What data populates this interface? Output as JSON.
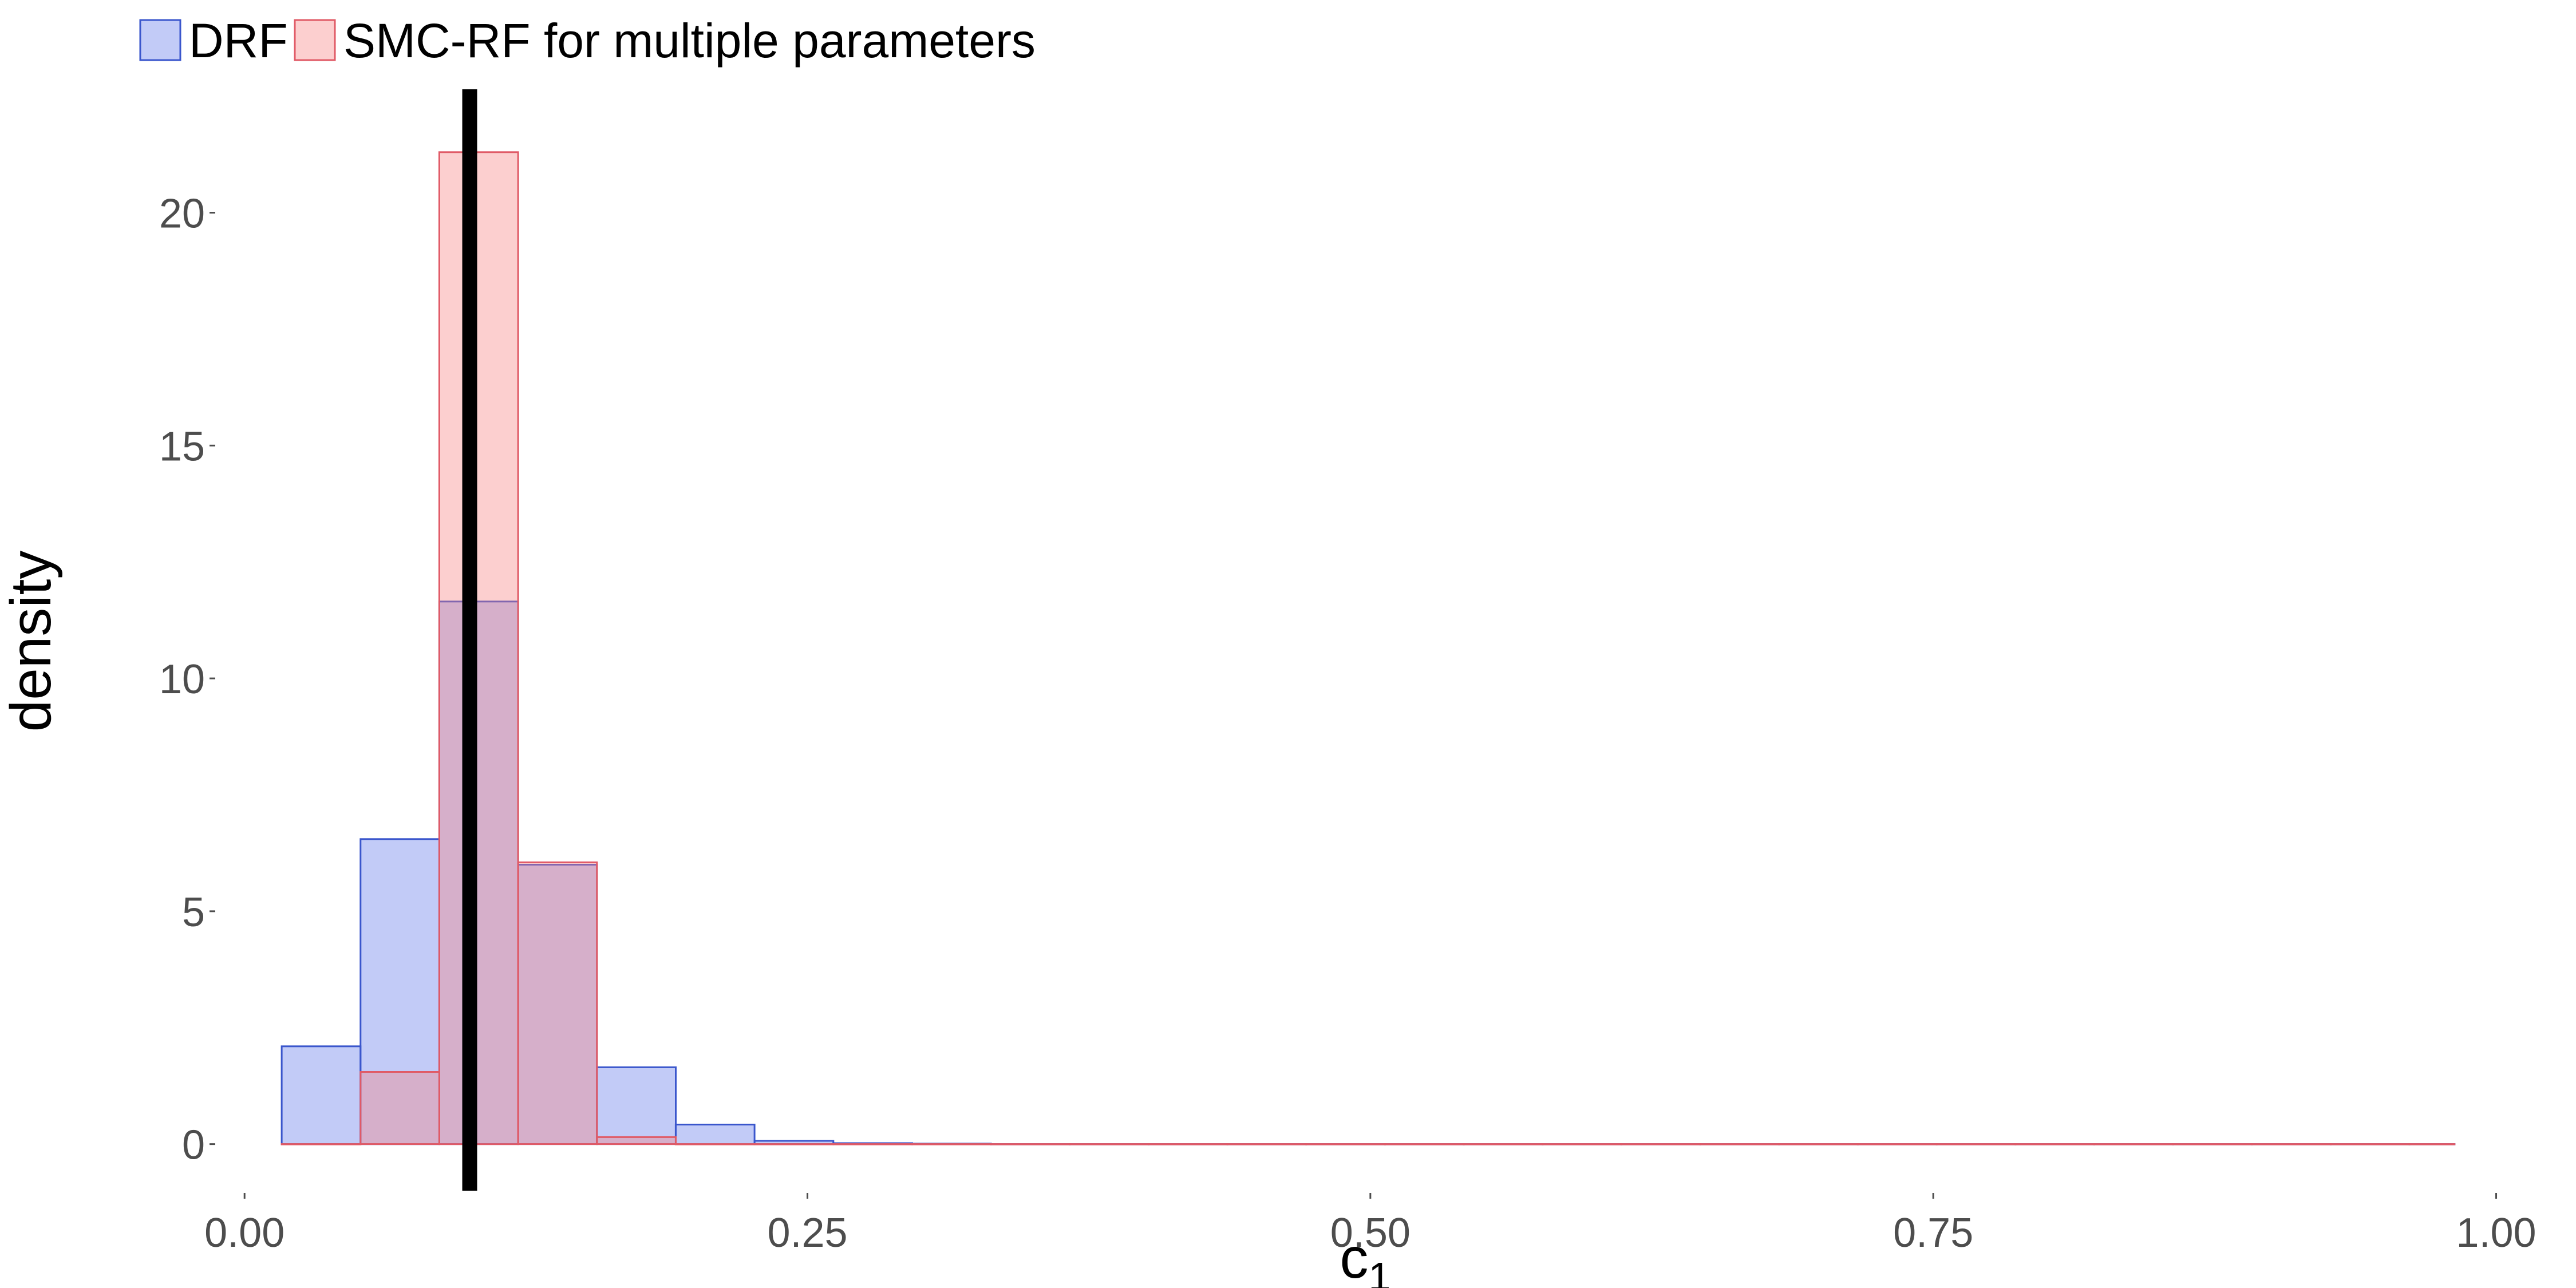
{
  "chart_data": {
    "type": "bar",
    "subtype": "overlapping-histogram",
    "xlabel": "c",
    "xlabel_subscript": "1",
    "ylabel": "density",
    "xlim": [
      -0.012,
      1.008
    ],
    "ylim": [
      -1.0,
      22.6
    ],
    "x_ticks": [
      0.0,
      0.25,
      0.5,
      0.75,
      1.0
    ],
    "x_tick_labels": [
      "0.00",
      "0.25",
      "0.50",
      "0.75",
      "1.00"
    ],
    "y_ticks": [
      0,
      5,
      10,
      15,
      20
    ],
    "y_tick_labels": [
      "0",
      "5",
      "10",
      "15",
      "20"
    ],
    "grid": false,
    "legend_position": "top-left",
    "bin_edges": [
      0.0165,
      0.0515,
      0.0865,
      0.1215,
      0.1565,
      0.1915,
      0.2265,
      0.2615,
      0.2965,
      0.3315,
      0.3665,
      0.4015,
      0.4365,
      0.4715,
      0.5065,
      0.5415,
      0.5765,
      0.6115,
      0.6465,
      0.6815,
      0.7165,
      0.7515,
      0.7865,
      0.8215,
      0.8565,
      0.8915,
      0.9265,
      0.9615,
      0.9815
    ],
    "series": [
      {
        "name": "DRF",
        "fill": "#3a56e6",
        "fill_opacity": 0.31,
        "stroke": "#3a56cc",
        "values": [
          2.1,
          6.55,
          11.65,
          6.0,
          1.65,
          0.42,
          0.07,
          0.02,
          0.01,
          0,
          0,
          0,
          0,
          0,
          0,
          0,
          0,
          0,
          0,
          0,
          0,
          0,
          0,
          0,
          0,
          0,
          0,
          0
        ]
      },
      {
        "name": "SMC-RF for multiple parameters",
        "fill": "#f88080",
        "fill_opacity": 0.38,
        "stroke": "#e05a66",
        "values": [
          0,
          1.55,
          21.3,
          6.05,
          0.15,
          0,
          0,
          0,
          0,
          0,
          0,
          0,
          0,
          0,
          0,
          0,
          0,
          0,
          0,
          0,
          0,
          0,
          0,
          0,
          0,
          0,
          0,
          0
        ]
      }
    ],
    "reference_line": {
      "x": 0.1,
      "color": "#000000"
    }
  }
}
